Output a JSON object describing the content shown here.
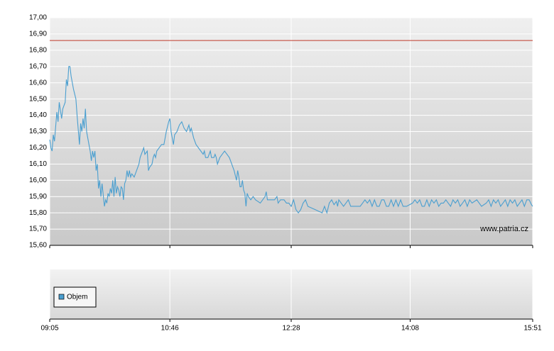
{
  "chart_data": [
    {
      "type": "line",
      "xlim": [
        545,
        951
      ],
      "xticks": [
        {
          "value": 545,
          "label": "09:05"
        },
        {
          "value": 646,
          "label": "10:46"
        },
        {
          "value": 748,
          "label": "12:28"
        },
        {
          "value": 848,
          "label": "14:08"
        },
        {
          "value": 951,
          "label": "15:51"
        }
      ],
      "ylim": [
        15.6,
        17.0
      ],
      "yticks": [
        {
          "value": 15.6,
          "label": "15,60"
        },
        {
          "value": 15.7,
          "label": "15,70"
        },
        {
          "value": 15.8,
          "label": "15,80"
        },
        {
          "value": 15.9,
          "label": "15,90"
        },
        {
          "value": 16.0,
          "label": "16,00"
        },
        {
          "value": 16.1,
          "label": "16,10"
        },
        {
          "value": 16.2,
          "label": "16,20"
        },
        {
          "value": 16.3,
          "label": "16,30"
        },
        {
          "value": 16.4,
          "label": "16,40"
        },
        {
          "value": 16.5,
          "label": "16,50"
        },
        {
          "value": 16.6,
          "label": "16,60"
        },
        {
          "value": 16.7,
          "label": "16,70"
        },
        {
          "value": 16.8,
          "label": "16,80"
        },
        {
          "value": 16.9,
          "label": "16,90"
        },
        {
          "value": 17.0,
          "label": "17,00"
        }
      ],
      "grid": true,
      "reference_line": {
        "value": 16.86,
        "color": "#c0392b"
      },
      "watermark": "www.patria.cz",
      "series": [
        {
          "color": "#4a9fd0",
          "x": [
            545,
            546,
            547,
            548,
            549,
            551,
            552,
            553,
            555,
            556,
            558,
            559,
            560,
            561,
            562,
            563,
            565,
            567,
            568,
            570,
            571,
            572,
            573,
            574,
            575,
            576,
            578,
            579,
            580,
            581,
            582,
            583,
            584,
            585,
            586,
            587,
            588,
            589,
            591,
            592,
            593,
            594,
            595,
            596,
            597,
            598,
            599,
            600,
            601,
            602,
            603,
            604,
            605,
            606,
            607,
            608,
            609,
            610,
            611,
            612,
            613,
            614,
            616,
            618,
            620,
            621,
            623,
            624,
            625,
            627,
            628,
            629,
            631,
            632,
            633,
            634,
            635,
            637,
            639,
            641,
            643,
            645,
            646,
            647,
            648,
            649,
            650,
            652,
            654,
            656,
            658,
            660,
            662,
            663,
            664,
            666,
            668,
            670,
            672,
            674,
            675,
            676,
            678,
            680,
            681,
            683,
            684,
            685,
            686,
            688,
            690,
            692,
            694,
            696,
            698,
            700,
            702,
            703,
            704,
            705,
            706,
            707,
            708,
            709,
            710,
            711,
            712,
            714,
            716,
            718,
            720,
            722,
            724,
            726,
            727,
            728,
            731,
            734,
            736,
            737,
            739,
            742,
            744,
            746,
            748,
            750,
            752,
            754,
            756,
            758,
            760,
            762,
            765,
            768,
            771,
            774,
            776,
            778,
            780,
            782,
            784,
            786,
            787,
            788,
            790,
            792,
            794,
            796,
            798,
            802,
            806,
            808,
            810,
            812,
            814,
            816,
            818,
            820,
            822,
            824,
            826,
            828,
            830,
            832,
            834,
            836,
            838,
            840,
            842,
            845,
            850,
            852,
            854,
            856,
            858,
            860,
            862,
            864,
            866,
            868,
            870,
            872,
            874,
            876,
            878,
            880,
            882,
            884,
            886,
            888,
            890,
            892,
            894,
            896,
            898,
            900,
            904,
            908,
            912,
            914,
            916,
            918,
            920,
            922,
            924,
            926,
            928,
            930,
            932,
            934,
            936,
            938,
            940,
            942,
            944,
            946,
            948,
            950,
            951
          ],
          "values": [
            16.25,
            16.2,
            16.18,
            16.28,
            16.24,
            16.42,
            16.36,
            16.48,
            16.38,
            16.44,
            16.48,
            16.62,
            16.58,
            16.7,
            16.7,
            16.64,
            16.56,
            16.5,
            16.4,
            16.22,
            16.35,
            16.3,
            16.38,
            16.32,
            16.44,
            16.3,
            16.22,
            16.18,
            16.12,
            16.18,
            16.14,
            16.18,
            16.06,
            16.1,
            15.95,
            16.0,
            15.9,
            15.98,
            15.84,
            15.88,
            15.86,
            15.92,
            15.9,
            15.95,
            15.92,
            16.0,
            15.9,
            16.02,
            15.92,
            15.96,
            15.94,
            15.9,
            15.96,
            15.95,
            15.88,
            15.98,
            16.0,
            16.06,
            16.02,
            16.06,
            16.02,
            16.04,
            16.02,
            16.06,
            16.1,
            16.14,
            16.18,
            16.2,
            16.16,
            16.18,
            16.06,
            16.08,
            16.1,
            16.14,
            16.16,
            16.14,
            16.18,
            16.2,
            16.22,
            16.22,
            16.3,
            16.36,
            16.38,
            16.3,
            16.26,
            16.22,
            16.28,
            16.3,
            16.34,
            16.36,
            16.32,
            16.3,
            16.34,
            16.3,
            16.32,
            16.26,
            16.22,
            16.2,
            16.18,
            16.16,
            16.18,
            16.14,
            16.14,
            16.18,
            16.14,
            16.14,
            16.16,
            16.14,
            16.1,
            16.14,
            16.16,
            16.18,
            16.16,
            16.14,
            16.1,
            16.06,
            16.0,
            16.06,
            16.02,
            15.96,
            15.96,
            16.0,
            15.94,
            15.92,
            15.84,
            15.92,
            15.9,
            15.88,
            15.9,
            15.88,
            15.87,
            15.86,
            15.88,
            15.9,
            15.93,
            15.88,
            15.88,
            15.88,
            15.9,
            15.86,
            15.88,
            15.88,
            15.86,
            15.86,
            15.84,
            15.88,
            15.82,
            15.8,
            15.82,
            15.86,
            15.88,
            15.84,
            15.83,
            15.82,
            15.81,
            15.8,
            15.84,
            15.8,
            15.86,
            15.88,
            15.85,
            15.87,
            15.84,
            15.88,
            15.86,
            15.84,
            15.86,
            15.88,
            15.84,
            15.84,
            15.84,
            15.86,
            15.88,
            15.86,
            15.88,
            15.84,
            15.88,
            15.84,
            15.84,
            15.88,
            15.88,
            15.84,
            15.84,
            15.88,
            15.84,
            15.88,
            15.84,
            15.88,
            15.84,
            15.84,
            15.86,
            15.88,
            15.86,
            15.88,
            15.84,
            15.84,
            15.88,
            15.84,
            15.88,
            15.86,
            15.88,
            15.84,
            15.86,
            15.86,
            15.88,
            15.86,
            15.84,
            15.88,
            15.86,
            15.88,
            15.84,
            15.86,
            15.88,
            15.84,
            15.88,
            15.86,
            15.88,
            15.84,
            15.86,
            15.88,
            15.84,
            15.88,
            15.86,
            15.88,
            15.84,
            15.86,
            15.88,
            15.84,
            15.88,
            15.86,
            15.88,
            15.84,
            15.86,
            15.88,
            15.84,
            15.88,
            15.88,
            15.85,
            15.84
          ]
        }
      ]
    },
    {
      "type": "bar",
      "series": [
        {
          "name": "Objem",
          "color": "#4a9fd0",
          "values": []
        }
      ]
    }
  ]
}
